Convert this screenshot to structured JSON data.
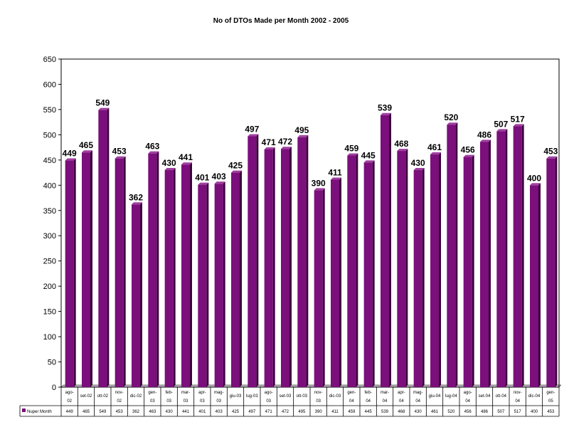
{
  "chart_data": {
    "type": "bar",
    "title": "No of DTOs Made per Month 2002 - 2005",
    "xlabel": "",
    "ylabel": "",
    "ylim": [
      0,
      650
    ],
    "ytick_step": 50,
    "grid": false,
    "legend": "data-table-bottom",
    "categories": [
      [
        "ago-",
        "02"
      ],
      [
        "set-02"
      ],
      [
        "ott-02"
      ],
      [
        "nov-",
        "02"
      ],
      [
        "dic-02"
      ],
      [
        "gen-",
        "03"
      ],
      [
        "feb-",
        "03"
      ],
      [
        "mar-",
        "03"
      ],
      [
        "apr-",
        "03"
      ],
      [
        "mag-",
        "03"
      ],
      [
        "giu-03"
      ],
      [
        "lug-03"
      ],
      [
        "ago-",
        "03"
      ],
      [
        "set-03"
      ],
      [
        "ott-03"
      ],
      [
        "nov-",
        "03"
      ],
      [
        "dic-03"
      ],
      [
        "gen-",
        "04"
      ],
      [
        "feb-",
        "04"
      ],
      [
        "mar-",
        "04"
      ],
      [
        "apr-",
        "04"
      ],
      [
        "mag-",
        "04"
      ],
      [
        "giu-04"
      ],
      [
        "lug-04"
      ],
      [
        "ago-",
        "04"
      ],
      [
        "set-04"
      ],
      [
        "ott-04"
      ],
      [
        "nov-",
        "04"
      ],
      [
        "dic-04"
      ],
      [
        "gen-",
        "05"
      ]
    ],
    "series": [
      {
        "name": "Nuper Month",
        "color": "#7b0f7b",
        "values": [
          449,
          465,
          549,
          453,
          362,
          463,
          430,
          441,
          401,
          403,
          425,
          497,
          471,
          472,
          495,
          390,
          411,
          459,
          445,
          539,
          468,
          430,
          461,
          520,
          456,
          486,
          507,
          517,
          400,
          453
        ]
      }
    ]
  }
}
